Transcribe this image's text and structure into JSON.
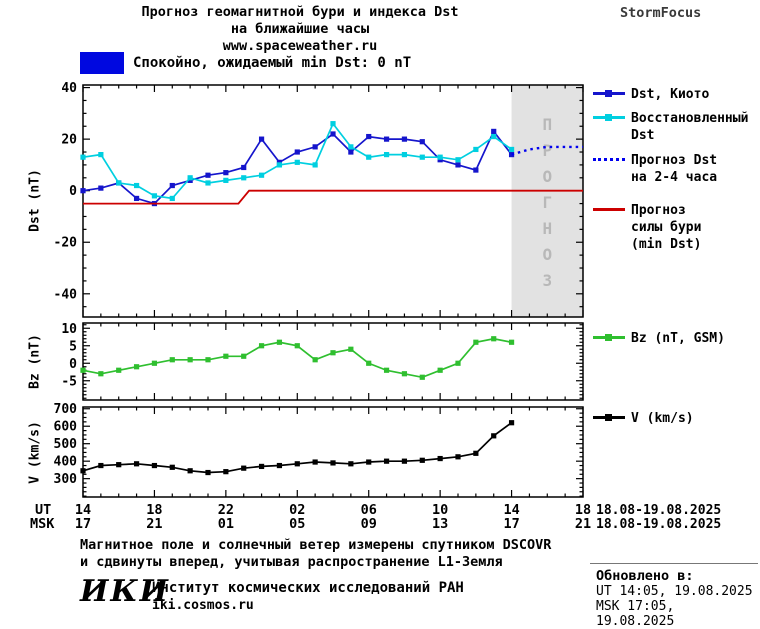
{
  "colors": {
    "dst_kyoto": "#1515cc",
    "dst_restored": "#00cfe0",
    "dst_forecast": "#0000ee",
    "storm_forecast": "#cc0000",
    "bz": "#2fbf2f",
    "v": "#000000",
    "forecast_band": "#e2e2e2",
    "watermark": "#b8b8b8",
    "status_swatch": "#0008e0"
  },
  "header": {
    "title_line1": "Прогноз геомагнитной бури и индекса Dst",
    "title_line2": "на ближайшие часы",
    "website": "www.spaceweather.ru",
    "brand": "StormFocus"
  },
  "status_banner": {
    "text": "Спокойно, ожидаемый min Dst: 0 nT"
  },
  "forecast_watermark": "ПРОГНОЗ",
  "legends": {
    "dst_kyoto": "Dst, Киото",
    "dst_restored_l1": "Восстановленный",
    "dst_restored_l2": "Dst",
    "dst_forecast_l1": "Прогноз Dst",
    "dst_forecast_l2": "на 2-4 часа",
    "storm_l1": "Прогноз",
    "storm_l2": "силы бури",
    "storm_l3": "(min Dst)",
    "bz": "Bz (nT, GSM)",
    "v": "V (km/s)"
  },
  "x_axis": {
    "ut_row_label": "UT",
    "msk_row_label": "MSK",
    "tick_hours": [
      0,
      4,
      8,
      12,
      16,
      20,
      24,
      28
    ],
    "ut_labels": [
      "14",
      "18",
      "22",
      "02",
      "06",
      "10",
      "14",
      "18"
    ],
    "msk_labels": [
      "17",
      "21",
      "01",
      "05",
      "09",
      "13",
      "17",
      "21"
    ],
    "ut_date_range": "18.08-19.08.2025",
    "msk_date_range": "18.08-19.08.2025"
  },
  "chart_data": [
    {
      "type": "line",
      "panel": "dst",
      "ylabel": "Dst (nT)",
      "x_unit": "hours since 14:00 UT 18.08.2025, ticks hourly",
      "xlim": [
        0,
        28
      ],
      "ylim": [
        -49,
        41
      ],
      "yticks": [
        -40,
        -20,
        0,
        20,
        40
      ],
      "yminor": 5,
      "forecast_region": [
        24,
        28
      ],
      "series": [
        {
          "name": "Dst, Киото",
          "color": "#1515cc",
          "marker": "square",
          "x_start": 0,
          "x_step": 1,
          "values": [
            0,
            1,
            3,
            -3,
            -5,
            2,
            4,
            6,
            7,
            9,
            20,
            11,
            15,
            17,
            22,
            15,
            21,
            20,
            20,
            19,
            12,
            10,
            8,
            23,
            14
          ]
        },
        {
          "name": "Восстановленный Dst",
          "color": "#00cfe0",
          "marker": "square",
          "x_start": 0,
          "x_step": 1,
          "values": [
            13,
            14,
            3,
            2,
            -2,
            -3,
            5,
            3,
            4,
            5,
            6,
            10,
            11,
            10,
            26,
            17,
            13,
            14,
            14,
            13,
            13,
            12,
            16,
            21,
            16
          ]
        },
        {
          "name": "Прогноз Dst на 2-4 часа",
          "color": "#0000ee",
          "dash": "2.5,4",
          "width": 2.4,
          "x": [
            24,
            25,
            26,
            27,
            28
          ],
          "values": [
            14,
            16,
            17,
            17,
            17
          ]
        },
        {
          "name": "Прогноз силы бури (min Dst)",
          "color": "#cc0000",
          "width": 1.8,
          "x": [
            0,
            8.7,
            9.3,
            28
          ],
          "values": [
            -5,
            -5,
            0,
            0
          ]
        }
      ]
    },
    {
      "type": "line",
      "panel": "bz",
      "ylabel": "Bz (nT)",
      "xlim": [
        0,
        28
      ],
      "ylim": [
        -10.5,
        11.5
      ],
      "yticks": [
        -5,
        0,
        5,
        10
      ],
      "yminor": 1,
      "series": [
        {
          "name": "Bz (nT, GSM)",
          "color": "#2fbf2f",
          "marker": "square",
          "x_start": 0,
          "x_step": 1,
          "values": [
            -2,
            -3,
            -2,
            -1,
            0,
            1,
            1,
            1,
            2,
            2,
            5,
            6,
            5,
            1,
            3,
            4,
            0,
            -2,
            -3,
            -4,
            -2,
            0,
            6,
            7,
            6
          ]
        }
      ]
    },
    {
      "type": "line",
      "panel": "v",
      "ylabel": "V (km/s)",
      "xlim": [
        0,
        28
      ],
      "ylim": [
        195,
        710
      ],
      "yticks": [
        300,
        400,
        500,
        600,
        700
      ],
      "yminor": 25,
      "series": [
        {
          "name": "V (km/s)",
          "color": "#000000",
          "marker": "square",
          "x_start": 0,
          "x_step": 1,
          "values": [
            345,
            375,
            380,
            385,
            375,
            365,
            345,
            335,
            340,
            360,
            370,
            375,
            385,
            395,
            390,
            385,
            395,
            400,
            400,
            405,
            415,
            425,
            445,
            545,
            620
          ]
        }
      ]
    }
  ],
  "footer": {
    "note_line1": "Магнитное поле и солнечный ветер измерены спутником DSCOVR",
    "note_line2": "и сдвинуты вперед, учитывая распространение L1-Земля",
    "logo": "ИКИ",
    "institute": "Институт космических исследований РАН",
    "institute_site": "iki.cosmos.ru",
    "updated_label": "Обновлено в:",
    "updated_ut": "UT  14:05, 19.08.2025",
    "updated_msk": "MSK 17:05, 19.08.2025"
  }
}
